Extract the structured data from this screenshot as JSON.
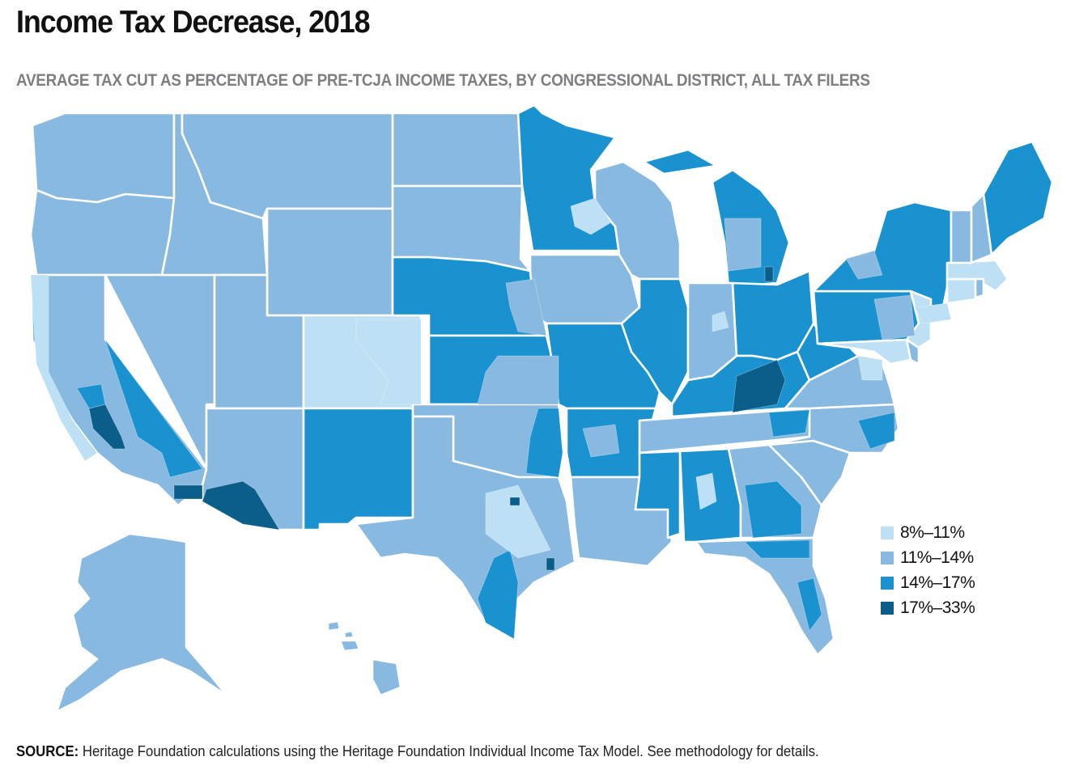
{
  "header": {
    "title": "Income Tax Decrease, 2018",
    "subtitle": "AVERAGE TAX CUT AS PERCENTAGE OF PRE-TCJA INCOME TAXES, BY CONGRESSIONAL DISTRICT, ALL TAX FILERS"
  },
  "legend": {
    "items": [
      {
        "label": "8%–11%",
        "color": "#bde0f5"
      },
      {
        "label": "11%–14%",
        "color": "#88b9e0"
      },
      {
        "label": "14%–17%",
        "color": "#1b92d0"
      },
      {
        "label": "17%–33%",
        "color": "#0b5e8a"
      }
    ]
  },
  "map": {
    "type": "choropleth",
    "unit": "average tax cut as % of pre-TCJA income taxes",
    "regions": [
      {
        "name": "Washington",
        "category": 1,
        "notes": "Seattle area 8%–11%"
      },
      {
        "name": "Oregon",
        "category": 1
      },
      {
        "name": "California",
        "category": 1,
        "notes": "coast 8%–11%; Central Valley 14%–33%; parts of LA area 17%–33%"
      },
      {
        "name": "Nevada",
        "category": 1,
        "notes": "southern district 14%–17%"
      },
      {
        "name": "Idaho",
        "category": 1
      },
      {
        "name": "Montana",
        "category": 1
      },
      {
        "name": "Wyoming",
        "category": 1
      },
      {
        "name": "Utah",
        "category": 1
      },
      {
        "name": "Arizona",
        "category": 1,
        "notes": "southern border district 17%–33%"
      },
      {
        "name": "Colorado",
        "category": 0,
        "notes": "Denver/east 8%–11%, west 11%–14%"
      },
      {
        "name": "New Mexico",
        "category": 2
      },
      {
        "name": "North Dakota",
        "category": 1
      },
      {
        "name": "South Dakota",
        "category": 1
      },
      {
        "name": "Nebraska",
        "category": 2
      },
      {
        "name": "Kansas",
        "category": 2
      },
      {
        "name": "Oklahoma",
        "category": 1,
        "notes": "eastern district 14%–17%"
      },
      {
        "name": "Texas",
        "category": 1,
        "notes": "south border 14%–17%; Houston/Dallas mix 8%–33%"
      },
      {
        "name": "Minnesota",
        "category": 2,
        "notes": "Twin Cities 8%–14%"
      },
      {
        "name": "Iowa",
        "category": 1
      },
      {
        "name": "Missouri",
        "category": 2
      },
      {
        "name": "Arkansas",
        "category": 2
      },
      {
        "name": "Louisiana",
        "category": 1
      },
      {
        "name": "Wisconsin",
        "category": 1
      },
      {
        "name": "Illinois",
        "category": 2,
        "notes": "Chicago area 11%–14%"
      },
      {
        "name": "Michigan",
        "category": 2,
        "notes": "Detroit area 17%–33%"
      },
      {
        "name": "Indiana",
        "category": 1
      },
      {
        "name": "Ohio",
        "category": 2
      },
      {
        "name": "Kentucky",
        "category": 2,
        "notes": "eastern district 17%–33%"
      },
      {
        "name": "Tennessee",
        "category": 1
      },
      {
        "name": "Mississippi",
        "category": 2
      },
      {
        "name": "Alabama",
        "category": 2
      },
      {
        "name": "Georgia",
        "category": 1
      },
      {
        "name": "Florida",
        "category": 1
      },
      {
        "name": "South Carolina",
        "category": 1
      },
      {
        "name": "North Carolina",
        "category": 1
      },
      {
        "name": "Virginia",
        "category": 1
      },
      {
        "name": "West Virginia",
        "category": 2
      },
      {
        "name": "Pennsylvania",
        "category": 2
      },
      {
        "name": "New York",
        "category": 2,
        "notes": "NYC area 8%–11%"
      },
      {
        "name": "New Jersey",
        "category": 0
      },
      {
        "name": "Maryland",
        "category": 0
      },
      {
        "name": "Delaware",
        "category": 1
      },
      {
        "name": "Connecticut",
        "category": 0
      },
      {
        "name": "Massachusetts",
        "category": 0
      },
      {
        "name": "Rhode Island",
        "category": 1
      },
      {
        "name": "Vermont",
        "category": 1
      },
      {
        "name": "New Hampshire",
        "category": 1
      },
      {
        "name": "Maine",
        "category": 2
      },
      {
        "name": "Alaska",
        "category": 1
      },
      {
        "name": "Hawaii",
        "category": 1
      }
    ]
  },
  "footer": {
    "source_label": "SOURCE:",
    "source_text": "Heritage Foundation calculations using the Heritage Foundation Individual Income Tax Model. See methodology for details."
  }
}
